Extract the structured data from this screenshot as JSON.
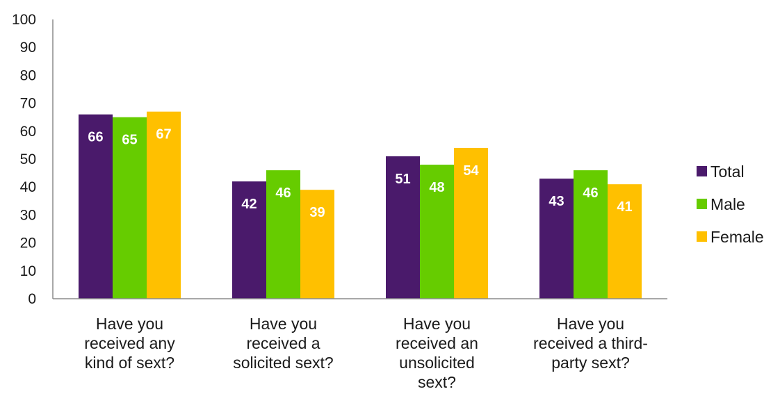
{
  "chart_data": {
    "type": "bar",
    "categories": [
      [
        "Have you",
        "received any",
        "kind of sext?"
      ],
      [
        "Have you",
        "received a",
        "solicited sext?"
      ],
      [
        "Have you",
        "received an",
        "unsolicited",
        "sext?"
      ],
      [
        "Have you",
        "received a third-",
        "party sext?"
      ]
    ],
    "series": [
      {
        "name": "Total",
        "color": "#4a1a6b",
        "values": [
          66,
          42,
          51,
          43
        ]
      },
      {
        "name": "Male",
        "color": "#66cc00",
        "values": [
          65,
          46,
          48,
          46
        ]
      },
      {
        "name": "Female",
        "color": "#ffc000",
        "values": [
          67,
          39,
          54,
          41
        ]
      }
    ],
    "ylim": [
      0,
      100
    ],
    "yticks": [
      0,
      10,
      20,
      30,
      40,
      50,
      60,
      70,
      80,
      90,
      100
    ],
    "grid": false,
    "legend_position": "right",
    "show_data_labels": true
  }
}
